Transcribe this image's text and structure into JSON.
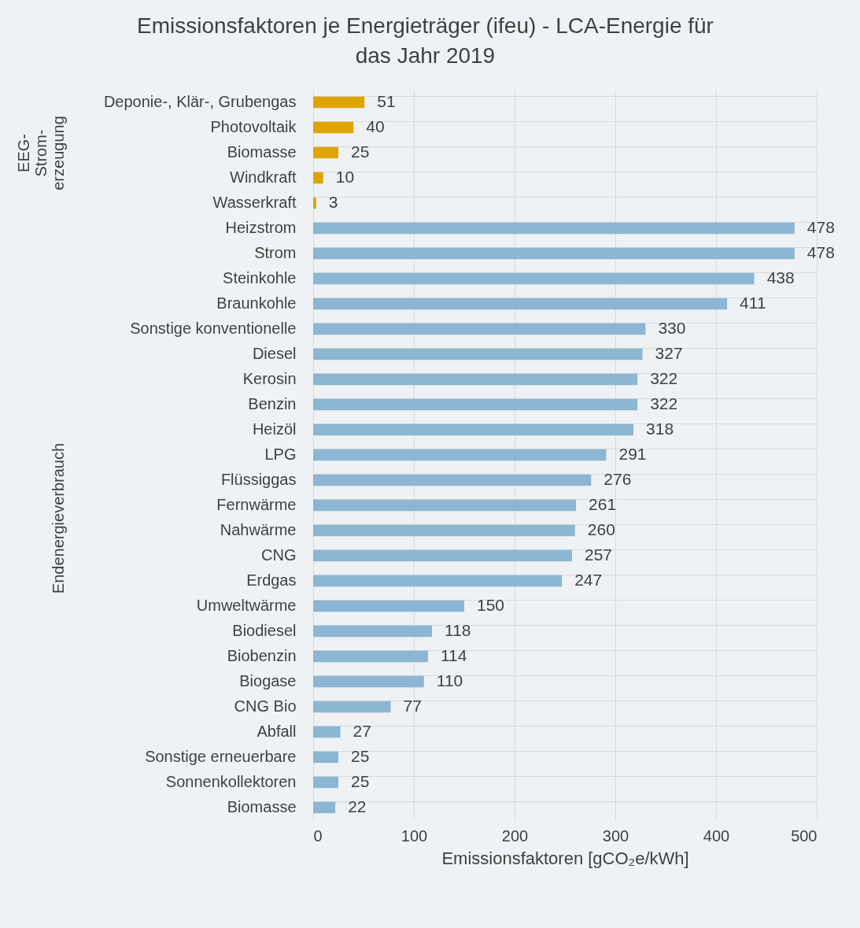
{
  "chart_data": [
    {
      "type": "bar",
      "orientation": "horizontal",
      "title": "Emissionsfaktoren je Energieträger (ifeu) - LCA-Energie für das Jahr 2019",
      "ylabel": "EEG-Strom-erzeugung",
      "categories": [
        "Deponie-, Klär-, Grubengas",
        "Photovoltaik",
        "Biomasse",
        "Windkraft",
        "Wasserkraft"
      ],
      "values": [
        51,
        40,
        25,
        10,
        3
      ],
      "color": "#e0a400",
      "xlim": [
        0,
        500
      ],
      "xticks": [
        0,
        100,
        200,
        300,
        400,
        500
      ],
      "grid": true,
      "data_labels": true,
      "tick_labels": "y"
    },
    {
      "type": "bar",
      "orientation": "horizontal",
      "ylabel": "Endenergieverbrauch",
      "xlabel": "Emissionsfaktoren [gCO₂e/kWh]",
      "categories": [
        "Heizstrom",
        "Strom",
        "Steinkohle",
        "Braunkohle",
        "Sonstige konventionelle",
        "Diesel",
        "Kerosin",
        "Benzin",
        "Heizöl",
        "LPG",
        "Flüssiggas",
        "Fernwärme",
        "Nahwärme",
        "CNG",
        "Erdgas",
        "Umweltwärme",
        "Biodiesel",
        "Biobenzin",
        "Biogase",
        "CNG Bio",
        "Abfall",
        "Sonstige erneuerbare",
        "Sonnenkollektoren",
        "Biomasse"
      ],
      "values": [
        478,
        478,
        438,
        411,
        330,
        327,
        322,
        322,
        318,
        291,
        276,
        261,
        260,
        257,
        247,
        150,
        118,
        114,
        110,
        77,
        27,
        25,
        25,
        22
      ],
      "color": "#8cb6d3",
      "xlim": [
        0,
        500
      ],
      "xticks": [
        0,
        100,
        200,
        300,
        400,
        500
      ],
      "grid": true,
      "data_labels": true
    }
  ]
}
